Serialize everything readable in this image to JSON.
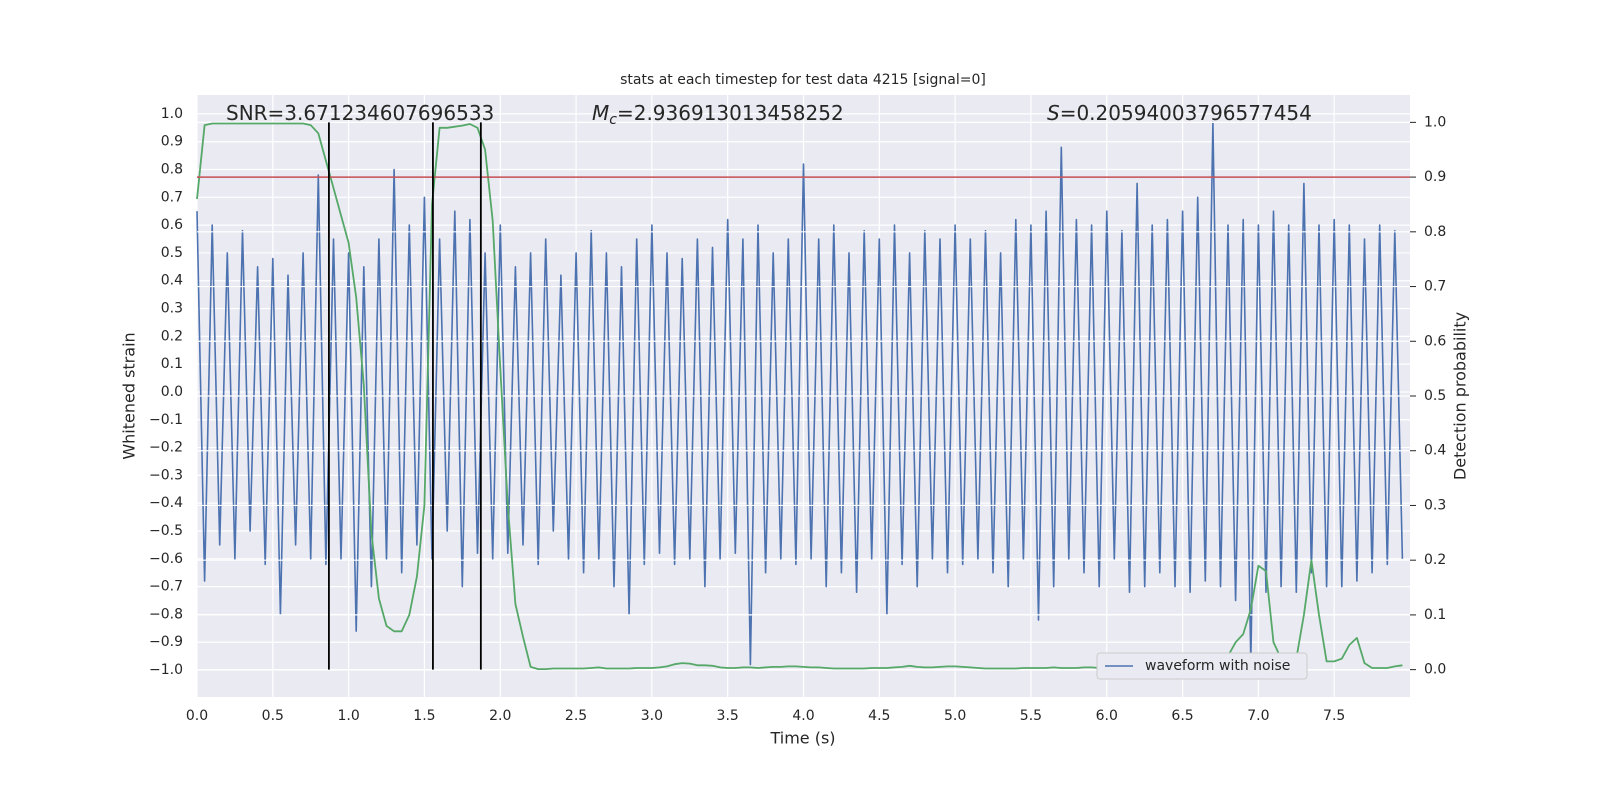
{
  "chart_data": {
    "type": "line",
    "title": "stats at each timestep for test data 4215 [signal=0]",
    "xlabel": "Time (s)",
    "ylabel": "Whitened strain",
    "y2label": "Detection probability",
    "annotations": [
      {
        "text": "SNR=3.671234607696533"
      },
      {
        "symbol": "M",
        "subscript": "c",
        "text": "=2.936913013458252"
      },
      {
        "symbol": "S",
        "text": "=0.20594003796577454"
      }
    ],
    "legend": "lower right",
    "grid": true,
    "xlim": [
      0,
      8
    ],
    "ylim": [
      -1.097,
      1.068
    ],
    "y2lim": [
      -0.05,
      1.05
    ],
    "xticks": [
      {
        "value": 0,
        "label": "0.0"
      },
      {
        "value": 0.5,
        "label": "0.5"
      },
      {
        "value": 1,
        "label": "1.0"
      },
      {
        "value": 1.5,
        "label": "1.5"
      },
      {
        "value": 2,
        "label": "2.0"
      },
      {
        "value": 2.5,
        "label": "2.5"
      },
      {
        "value": 3,
        "label": "3.0"
      },
      {
        "value": 3.5,
        "label": "3.5"
      },
      {
        "value": 4,
        "label": "4.0"
      },
      {
        "value": 4.5,
        "label": "4.5"
      },
      {
        "value": 5,
        "label": "5.0"
      },
      {
        "value": 5.5,
        "label": "5.5"
      },
      {
        "value": 6,
        "label": "6.0"
      },
      {
        "value": 6.5,
        "label": "6.5"
      },
      {
        "value": 7,
        "label": "7.0"
      },
      {
        "value": 7.5,
        "label": "7.5"
      }
    ],
    "yticks": [
      {
        "value": 1,
        "label": "1.0"
      },
      {
        "value": 0.9,
        "label": "0.9"
      },
      {
        "value": 0.8,
        "label": "0.8"
      },
      {
        "value": 0.7,
        "label": "0.7"
      },
      {
        "value": 0.6,
        "label": "0.6"
      },
      {
        "value": 0.5,
        "label": "0.5"
      },
      {
        "value": 0.4,
        "label": "0.4"
      },
      {
        "value": 0.3,
        "label": "0.3"
      },
      {
        "value": 0.2,
        "label": "0.2"
      },
      {
        "value": 0.1,
        "label": "0.1"
      },
      {
        "value": 0,
        "label": "0.0"
      },
      {
        "value": -0.1,
        "label": "−0.1"
      },
      {
        "value": -0.2,
        "label": "−0.2"
      },
      {
        "value": -0.3,
        "label": "−0.3"
      },
      {
        "value": -0.4,
        "label": "−0.4"
      },
      {
        "value": -0.5,
        "label": "−0.5"
      },
      {
        "value": -0.6,
        "label": "−0.6"
      },
      {
        "value": -0.7,
        "label": "−0.7"
      },
      {
        "value": -0.8,
        "label": "−0.8"
      },
      {
        "value": -0.9,
        "label": "−0.9"
      },
      {
        "value": -1,
        "label": "−1.0"
      }
    ],
    "y2ticks": [
      {
        "value": 0,
        "label": "0.0"
      },
      {
        "value": 0.1,
        "label": "0.1"
      },
      {
        "value": 0.2,
        "label": "0.2"
      },
      {
        "value": 0.3,
        "label": "0.3"
      },
      {
        "value": 0.4,
        "label": "0.4"
      },
      {
        "value": 0.5,
        "label": "0.5"
      },
      {
        "value": 0.6,
        "label": "0.6"
      },
      {
        "value": 0.7,
        "label": "0.7"
      },
      {
        "value": 0.8,
        "label": "0.8"
      },
      {
        "value": 0.9,
        "label": "0.9"
      },
      {
        "value": 1,
        "label": "1.0"
      }
    ],
    "x": [
      0,
      0.05,
      0.1,
      0.15,
      0.2,
      0.25,
      0.3,
      0.35,
      0.4,
      0.45,
      0.5,
      0.55,
      0.6,
      0.65,
      0.7,
      0.75,
      0.8,
      0.85,
      0.9,
      0.95,
      1,
      1.05,
      1.1,
      1.15,
      1.2,
      1.25,
      1.3,
      1.35,
      1.4,
      1.45,
      1.5,
      1.55,
      1.6,
      1.65,
      1.7,
      1.75,
      1.8,
      1.85,
      1.9,
      1.95,
      2,
      2.05,
      2.1,
      2.15,
      2.2,
      2.25,
      2.3,
      2.35,
      2.4,
      2.45,
      2.5,
      2.55,
      2.6,
      2.65,
      2.7,
      2.75,
      2.8,
      2.85,
      2.9,
      2.95,
      3,
      3.05,
      3.1,
      3.15,
      3.2,
      3.25,
      3.3,
      3.35,
      3.4,
      3.45,
      3.5,
      3.55,
      3.6,
      3.65,
      3.7,
      3.75,
      3.8,
      3.85,
      3.9,
      3.95,
      4,
      4.05,
      4.1,
      4.15,
      4.2,
      4.25,
      4.3,
      4.35,
      4.4,
      4.45,
      4.5,
      4.55,
      4.6,
      4.65,
      4.7,
      4.75,
      4.8,
      4.85,
      4.9,
      4.95,
      5,
      5.05,
      5.1,
      5.15,
      5.2,
      5.25,
      5.3,
      5.35,
      5.4,
      5.45,
      5.5,
      5.55,
      5.6,
      5.65,
      5.7,
      5.75,
      5.8,
      5.85,
      5.9,
      5.95,
      6,
      6.05,
      6.1,
      6.15,
      6.2,
      6.25,
      6.3,
      6.35,
      6.4,
      6.45,
      6.5,
      6.55,
      6.6,
      6.65,
      6.7,
      6.75,
      6.8,
      6.85,
      6.9,
      6.95,
      7,
      7.05,
      7.1,
      7.15,
      7.2,
      7.25,
      7.3,
      7.35,
      7.4,
      7.45,
      7.5,
      7.55,
      7.6,
      7.65,
      7.7,
      7.75,
      7.8,
      7.85,
      7.9,
      7.95
    ],
    "series": [
      {
        "name": "waveform with noise",
        "color": "#4c72b0",
        "values": [
          0.65,
          -0.68,
          0.6,
          -0.55,
          0.5,
          -0.6,
          0.58,
          -0.5,
          0.45,
          -0.62,
          0.48,
          -0.8,
          0.42,
          -0.55,
          0.5,
          -0.6,
          0.78,
          -0.62,
          0.55,
          -0.6,
          0.5,
          -0.86,
          0.45,
          -0.7,
          0.55,
          -0.6,
          0.8,
          -0.65,
          0.6,
          -0.55,
          0.7,
          -0.6,
          0.55,
          -0.5,
          0.65,
          -0.7,
          0.62,
          -0.58,
          0.5,
          -0.6,
          0.6,
          -0.58,
          0.45,
          -0.55,
          0.5,
          -0.62,
          0.55,
          -0.5,
          0.42,
          -0.6,
          0.5,
          -0.65,
          0.58,
          -0.6,
          0.5,
          -0.7,
          0.45,
          -0.8,
          0.55,
          -0.62,
          0.6,
          -0.58,
          0.5,
          -0.62,
          0.48,
          -0.6,
          0.55,
          -0.7,
          0.52,
          -0.6,
          0.62,
          -0.58,
          0.55,
          -0.98,
          0.6,
          -0.65,
          0.5,
          -0.6,
          0.55,
          -0.62,
          0.82,
          -0.6,
          0.55,
          -0.7,
          0.6,
          -0.65,
          0.5,
          -0.72,
          0.58,
          -0.6,
          0.55,
          -0.8,
          0.6,
          -0.62,
          0.5,
          -0.7,
          0.58,
          -0.6,
          0.55,
          -0.65,
          0.6,
          -0.62,
          0.55,
          -0.6,
          0.58,
          -0.65,
          0.5,
          -0.7,
          0.62,
          -0.6,
          0.6,
          -0.82,
          0.65,
          -0.7,
          0.88,
          -0.6,
          0.62,
          -0.65,
          0.6,
          -0.7,
          0.65,
          -0.6,
          0.58,
          -0.72,
          0.75,
          -0.7,
          0.6,
          -0.65,
          0.62,
          -0.7,
          0.65,
          -0.72,
          0.7,
          -0.68,
          0.97,
          -0.7,
          0.6,
          -0.75,
          0.62,
          -0.97,
          0.6,
          -0.72,
          0.65,
          -0.7,
          0.6,
          -0.72,
          0.75,
          -0.65,
          0.6,
          -0.7,
          0.62,
          -0.7,
          0.6,
          -0.68,
          0.55,
          -0.65,
          0.6,
          -0.62,
          0.58,
          -0.6
        ]
      },
      {
        "color": "#55a868",
        "axis": "y2",
        "values": [
          0.86,
          0.995,
          0.998,
          0.998,
          0.998,
          0.998,
          0.998,
          0.998,
          0.998,
          0.998,
          0.998,
          0.998,
          0.998,
          0.998,
          0.998,
          0.995,
          0.98,
          0.93,
          0.88,
          0.83,
          0.78,
          0.68,
          0.52,
          0.25,
          0.13,
          0.08,
          0.07,
          0.07,
          0.1,
          0.17,
          0.3,
          0.85,
          0.99,
          0.99,
          0.992,
          0.994,
          0.997,
          0.99,
          0.95,
          0.82,
          0.55,
          0.3,
          0.12,
          0.06,
          0.005,
          0.001,
          0.001,
          0.002,
          0.002,
          0.002,
          0.002,
          0.002,
          0.003,
          0.004,
          0.002,
          0.002,
          0.002,
          0.002,
          0.003,
          0.003,
          0.003,
          0.004,
          0.006,
          0.01,
          0.012,
          0.011,
          0.008,
          0.008,
          0.007,
          0.004,
          0.003,
          0.003,
          0.004,
          0.004,
          0.003,
          0.004,
          0.005,
          0.005,
          0.006,
          0.006,
          0.005,
          0.004,
          0.004,
          0.003,
          0.002,
          0.002,
          0.002,
          0.002,
          0.002,
          0.003,
          0.003,
          0.003,
          0.004,
          0.005,
          0.007,
          0.005,
          0.004,
          0.004,
          0.005,
          0.006,
          0.006,
          0.005,
          0.004,
          0.003,
          0.002,
          0.002,
          0.002,
          0.002,
          0.002,
          0.003,
          0.003,
          0.003,
          0.003,
          0.004,
          0.003,
          0.003,
          0.003,
          0.004,
          0.004,
          0.003,
          0.003,
          0.003,
          0.002,
          0.002,
          0.003,
          0.003,
          0.003,
          0.003,
          0.003,
          0.003,
          0.003,
          0.003,
          0.004,
          0.005,
          0.008,
          0.012,
          0.025,
          0.05,
          0.065,
          0.11,
          0.19,
          0.18,
          0.05,
          0.02,
          0.02,
          0.02,
          0.1,
          0.2,
          0.1,
          0.015,
          0.015,
          0.02,
          0.045,
          0.058,
          0.012,
          0.003,
          0.003,
          0.003,
          0.006,
          0.008
        ]
      }
    ],
    "threshold": 0.9,
    "threshold_color": "#c44e52",
    "detections": [
      0.87,
      1.556,
      1.872
    ],
    "detection_color": "#000000"
  }
}
